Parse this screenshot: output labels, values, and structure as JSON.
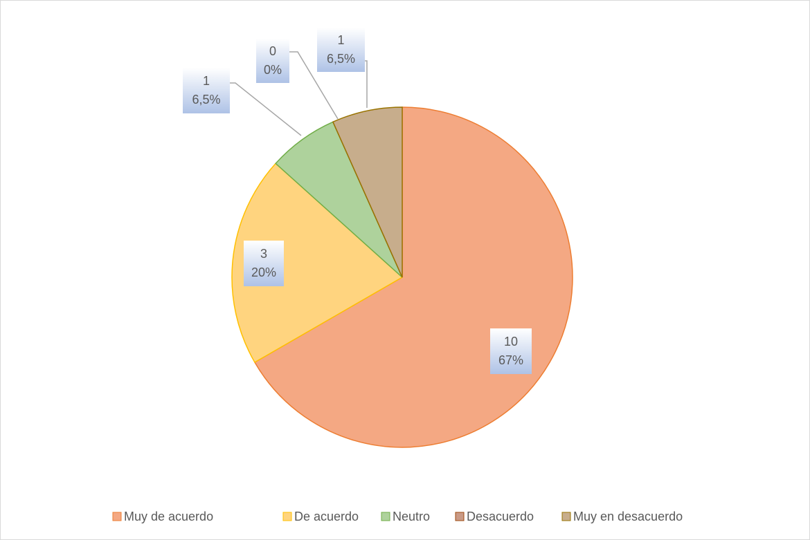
{
  "chart_data": {
    "type": "pie",
    "categories": [
      "Muy de acuerdo",
      "De acuerdo",
      "Neutro",
      "Desacuerdo",
      "Muy en desacuerdo"
    ],
    "values": [
      10,
      3,
      1,
      0,
      1
    ],
    "percentages": [
      67,
      20,
      6.5,
      0,
      6.5
    ],
    "percentage_labels": [
      "67%",
      "20%",
      "6,5%",
      "0%",
      "6,5%"
    ],
    "colors": [
      "#f4a883",
      "#ffd47f",
      "#aed29c",
      "#c99a86",
      "#c7ad8c"
    ],
    "stroke_colors": [
      "#ed7d31",
      "#ffc000",
      "#70ad47",
      "#9e480e",
      "#997300"
    ],
    "legend": "bottom"
  }
}
